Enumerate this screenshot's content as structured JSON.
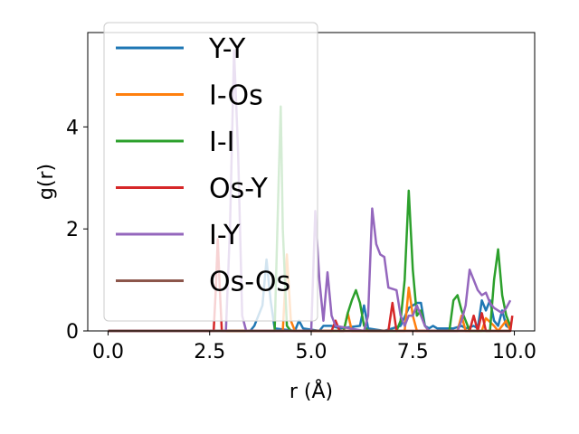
{
  "chart_data": {
    "type": "line",
    "xlabel": "r (Å)",
    "ylabel": "g(r)",
    "xlim": [
      -0.5,
      10.5
    ],
    "ylim": [
      0,
      5.85
    ],
    "xticks": [
      0.0,
      2.5,
      5.0,
      7.5,
      10.0
    ],
    "xtick_labels": [
      "0.0",
      "2.5",
      "5.0",
      "7.5",
      "10.0"
    ],
    "yticks": [
      0,
      2,
      4
    ],
    "ytick_labels": [
      "0",
      "2",
      "4"
    ],
    "grid": false,
    "legend_position": "upper-left",
    "series": [
      {
        "name": "Y-Y",
        "color": "#1f77b4",
        "points": [
          [
            0,
            0
          ],
          [
            3.5,
            0
          ],
          [
            3.6,
            0.1
          ],
          [
            3.8,
            0.5
          ],
          [
            3.9,
            1.4
          ],
          [
            4.0,
            0.6
          ],
          [
            4.1,
            0.05
          ],
          [
            4.6,
            0
          ],
          [
            4.7,
            0.2
          ],
          [
            4.8,
            0.05
          ],
          [
            5.2,
            0
          ],
          [
            5.3,
            0.1
          ],
          [
            5.5,
            0.1
          ],
          [
            5.7,
            0.05
          ],
          [
            6.2,
            0.1
          ],
          [
            6.3,
            0.5
          ],
          [
            6.4,
            0.05
          ],
          [
            6.8,
            0
          ],
          [
            7.0,
            0.05
          ],
          [
            7.2,
            0.1
          ],
          [
            7.4,
            0.45
          ],
          [
            7.5,
            0.5
          ],
          [
            7.6,
            0.55
          ],
          [
            7.7,
            0.55
          ],
          [
            7.8,
            0.1
          ],
          [
            7.9,
            0.05
          ],
          [
            8.0,
            0.1
          ],
          [
            8.1,
            0.05
          ],
          [
            8.5,
            0.05
          ],
          [
            8.7,
            0.1
          ],
          [
            8.8,
            0.05
          ],
          [
            9.0,
            0.1
          ],
          [
            9.1,
            0.05
          ],
          [
            9.2,
            0.6
          ],
          [
            9.3,
            0.4
          ],
          [
            9.4,
            0.6
          ],
          [
            9.5,
            0.2
          ],
          [
            9.6,
            0.1
          ],
          [
            9.7,
            0.4
          ],
          [
            9.8,
            0.1
          ],
          [
            9.9,
            0.05
          ]
        ]
      },
      {
        "name": "I-Os",
        "color": "#ff7f0e",
        "points": [
          [
            0,
            0
          ],
          [
            4.3,
            0
          ],
          [
            4.4,
            1.5
          ],
          [
            4.5,
            0.2
          ],
          [
            4.6,
            0
          ],
          [
            5.8,
            0
          ],
          [
            5.9,
            0.35
          ],
          [
            6.0,
            0
          ],
          [
            7.3,
            0
          ],
          [
            7.4,
            0.85
          ],
          [
            7.5,
            0.3
          ],
          [
            7.6,
            0
          ],
          [
            8.6,
            0
          ],
          [
            8.7,
            0.3
          ],
          [
            8.8,
            0
          ],
          [
            9.2,
            0
          ],
          [
            9.3,
            0.25
          ],
          [
            9.5,
            0.1
          ],
          [
            9.6,
            0
          ],
          [
            9.8,
            0.2
          ],
          [
            9.9,
            0
          ]
        ]
      },
      {
        "name": "I-I",
        "color": "#2ca02c",
        "points": [
          [
            0,
            0
          ],
          [
            4.1,
            0
          ],
          [
            4.2,
            3.0
          ],
          [
            4.25,
            4.4
          ],
          [
            4.3,
            2.0
          ],
          [
            4.4,
            0.1
          ],
          [
            4.5,
            0
          ],
          [
            5.8,
            0
          ],
          [
            5.9,
            0.35
          ],
          [
            6.0,
            0.6
          ],
          [
            6.1,
            0.8
          ],
          [
            6.2,
            0.55
          ],
          [
            6.3,
            0.1
          ],
          [
            6.4,
            0
          ],
          [
            7.1,
            0
          ],
          [
            7.2,
            0.2
          ],
          [
            7.3,
            1.0
          ],
          [
            7.4,
            2.75
          ],
          [
            7.5,
            1.2
          ],
          [
            7.6,
            0.3
          ],
          [
            7.7,
            0.4
          ],
          [
            7.8,
            0.1
          ],
          [
            7.9,
            0
          ],
          [
            8.4,
            0
          ],
          [
            8.5,
            0.6
          ],
          [
            8.6,
            0.7
          ],
          [
            8.7,
            0.4
          ],
          [
            8.8,
            0.2
          ],
          [
            8.9,
            0
          ],
          [
            9.4,
            0
          ],
          [
            9.5,
            1.0
          ],
          [
            9.6,
            1.6
          ],
          [
            9.7,
            0.7
          ],
          [
            9.8,
            0.3
          ],
          [
            9.9,
            0.1
          ]
        ]
      },
      {
        "name": "Os-Y",
        "color": "#d62728",
        "points": [
          [
            0,
            0
          ],
          [
            2.6,
            0
          ],
          [
            2.65,
            0.8
          ],
          [
            2.7,
            1.8
          ],
          [
            2.75,
            0.8
          ],
          [
            2.8,
            0
          ],
          [
            5.5,
            0
          ],
          [
            5.6,
            0.2
          ],
          [
            5.7,
            0
          ],
          [
            6.9,
            0
          ],
          [
            7.0,
            0.55
          ],
          [
            7.1,
            0
          ],
          [
            8.9,
            0
          ],
          [
            9.0,
            0.3
          ],
          [
            9.1,
            0
          ],
          [
            9.2,
            0.35
          ],
          [
            9.3,
            0
          ],
          [
            9.9,
            0
          ],
          [
            9.95,
            0.3
          ]
        ]
      },
      {
        "name": "I-Y",
        "color": "#9467bd",
        "points": [
          [
            0,
            0
          ],
          [
            2.9,
            0
          ],
          [
            3.0,
            2.0
          ],
          [
            3.1,
            5.5
          ],
          [
            3.2,
            3.5
          ],
          [
            3.3,
            0.3
          ],
          [
            3.4,
            0
          ],
          [
            5.0,
            0
          ],
          [
            5.1,
            2.35
          ],
          [
            5.2,
            1.0
          ],
          [
            5.3,
            0.2
          ],
          [
            5.4,
            1.15
          ],
          [
            5.5,
            0.3
          ],
          [
            5.6,
            0.1
          ],
          [
            6.3,
            0
          ],
          [
            6.4,
            0.3
          ],
          [
            6.5,
            2.4
          ],
          [
            6.6,
            1.7
          ],
          [
            6.7,
            1.5
          ],
          [
            6.8,
            1.45
          ],
          [
            6.9,
            0.85
          ],
          [
            7.1,
            0.8
          ],
          [
            7.2,
            0.3
          ],
          [
            7.3,
            0.1
          ],
          [
            7.4,
            0.3
          ],
          [
            7.5,
            0.3
          ],
          [
            7.6,
            0.5
          ],
          [
            7.7,
            0.3
          ],
          [
            7.8,
            0.1
          ],
          [
            7.9,
            0
          ],
          [
            8.6,
            0
          ],
          [
            8.7,
            0.2
          ],
          [
            8.8,
            0.5
          ],
          [
            8.9,
            1.2
          ],
          [
            9.0,
            1.0
          ],
          [
            9.1,
            0.8
          ],
          [
            9.2,
            0.7
          ],
          [
            9.3,
            0.75
          ],
          [
            9.4,
            0.55
          ],
          [
            9.5,
            0.45
          ],
          [
            9.6,
            0.4
          ],
          [
            9.7,
            0.35
          ],
          [
            9.8,
            0.45
          ],
          [
            9.9,
            0.6
          ]
        ]
      },
      {
        "name": "Os-Os",
        "color": "#8c564b",
        "points": [
          [
            0,
            0
          ],
          [
            9.9,
            0
          ]
        ]
      }
    ]
  }
}
